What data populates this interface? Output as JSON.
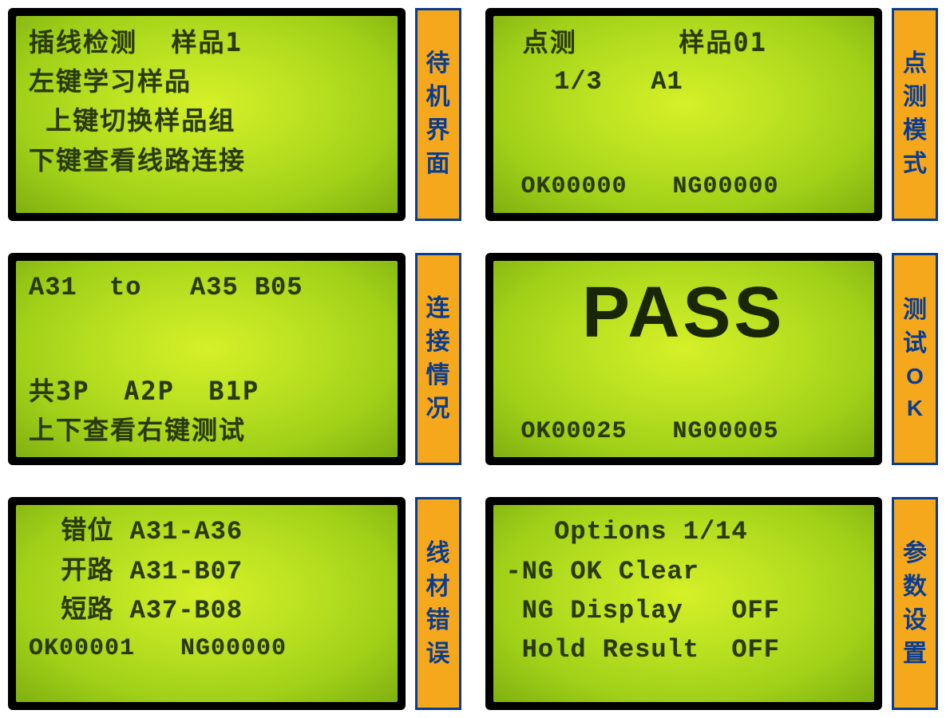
{
  "colors": {
    "lcd_bright": "#d5f028",
    "lcd_mid": "#b8e020",
    "lcd_dark": "#80b010",
    "lcd_text": "#2a3a10",
    "label_bg": "#f6a81c",
    "label_border": "#0a3d91",
    "label_text": "#0a3d91",
    "page_bg": "#ffffff",
    "lcd_bezel": "#000000"
  },
  "typography": {
    "lcd_fontsize": 32,
    "lcd_big_fontsize": 90,
    "lcd_counter_fontsize": 30,
    "label_fontsize": 30
  },
  "screens": [
    {
      "id": "standby",
      "lines": [
        {
          "style": "lcd-line",
          "text": "插线检测  样品1"
        },
        {
          "style": "lcd-line",
          "text": "左键学习样品"
        },
        {
          "style": "lcd-line",
          "text": " 上键切换样品组"
        },
        {
          "style": "lcd-line",
          "text": "下键查看线路连接"
        }
      ],
      "label": [
        "待",
        "机",
        "界",
        "面"
      ]
    },
    {
      "id": "point-test",
      "lines": [
        {
          "style": "lcd-line",
          "text": " 点测      样品01"
        },
        {
          "style": "lcd-line mono",
          "text": "   1/3   A1"
        },
        {
          "style": "spacer",
          "text": ""
        },
        {
          "style": "lcd-line counter",
          "text": " OK00000   NG00000"
        }
      ],
      "label": [
        "点",
        "测",
        "模",
        "式"
      ]
    },
    {
      "id": "connection",
      "lines": [
        {
          "style": "lcd-line mono",
          "text": "A31  to   A35 B05"
        },
        {
          "style": "spacer",
          "text": ""
        },
        {
          "style": "lcd-line",
          "text": "共3P  A2P  B1P"
        },
        {
          "style": "lcd-line",
          "text": "上下查看右键测试"
        }
      ],
      "label": [
        "连",
        "接",
        "情",
        "况"
      ]
    },
    {
      "id": "pass",
      "lines": [
        {
          "style": "lcd-line big",
          "text": "PASS"
        },
        {
          "style": "spacer",
          "text": ""
        },
        {
          "style": "lcd-line counter",
          "text": " OK00025   NG00005"
        }
      ],
      "label": [
        "测",
        "试",
        "O",
        "K"
      ]
    },
    {
      "id": "error",
      "lines": [
        {
          "style": "lcd-line mono",
          "text": "  错位 A31-A36"
        },
        {
          "style": "lcd-line mono",
          "text": "  开路 A31-B07"
        },
        {
          "style": "lcd-line mono",
          "text": "  短路 A37-B08"
        },
        {
          "style": "lcd-line counter",
          "text": "OK00001   NG00000"
        }
      ],
      "label": [
        "线",
        "材",
        "错",
        "误"
      ]
    },
    {
      "id": "options",
      "lines": [
        {
          "style": "lcd-line mono",
          "text": "   Options 1/14"
        },
        {
          "style": "lcd-line mono",
          "text": "-NG OK Clear"
        },
        {
          "style": "lcd-line mono",
          "text": " NG Display   OFF"
        },
        {
          "style": "lcd-line mono",
          "text": " Hold Result  OFF"
        }
      ],
      "label": [
        "参",
        "数",
        "设",
        "置"
      ]
    }
  ]
}
